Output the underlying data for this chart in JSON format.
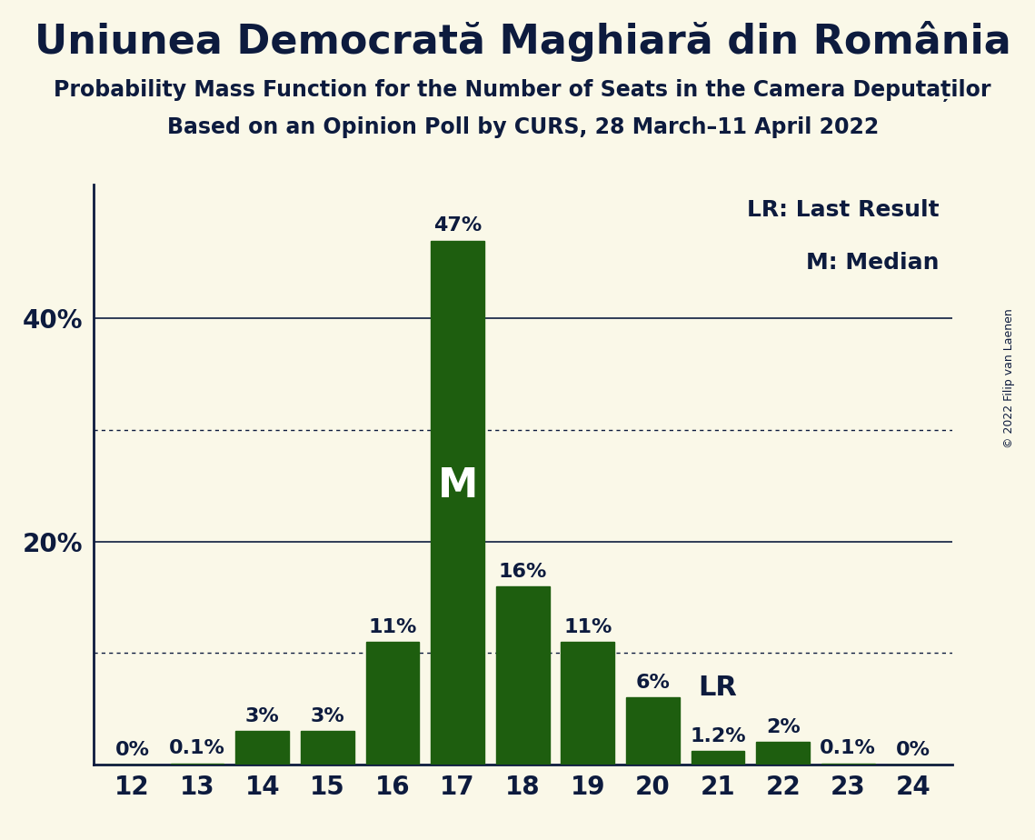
{
  "title": "Uniunea Democrată Maghiară din România",
  "subtitle1": "Probability Mass Function for the Number of Seats in the Camera Deputaților",
  "subtitle2": "Based on an Opinion Poll by CURS, 28 March–11 April 2022",
  "copyright": "© 2022 Filip van Laenen",
  "categories": [
    12,
    13,
    14,
    15,
    16,
    17,
    18,
    19,
    20,
    21,
    22,
    23,
    24
  ],
  "values": [
    0.0,
    0.1,
    3.0,
    3.0,
    11.0,
    47.0,
    16.0,
    11.0,
    6.0,
    1.2,
    2.0,
    0.1,
    0.0
  ],
  "labels": [
    "0%",
    "0.1%",
    "3%",
    "3%",
    "11%",
    "47%",
    "16%",
    "11%",
    "6%",
    "1.2%",
    "2%",
    "0.1%",
    "0%"
  ],
  "bar_color": "#1e5e0f",
  "background_color": "#faf8e8",
  "median_seat": 17,
  "lr_seat": 21,
  "legend_lr": "LR: Last Result",
  "legend_m": "M: Median",
  "median_label": "M",
  "lr_label": "LR",
  "ylim": [
    0,
    52
  ],
  "solid_grid": [
    20,
    40
  ],
  "dotted_grid": [
    10,
    30
  ],
  "title_fontsize": 32,
  "subtitle_fontsize": 17,
  "bar_label_fontsize": 16,
  "legend_fontsize": 18,
  "median_fontsize": 32,
  "lr_fontsize": 22,
  "tick_fontsize": 20,
  "text_color": "#0d1b3e"
}
